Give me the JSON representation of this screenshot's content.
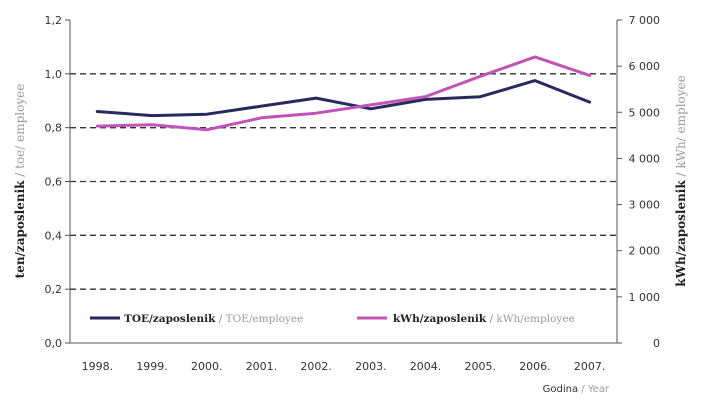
{
  "chart_data": {
    "type": "line",
    "categories": [
      "1998.",
      "1999.",
      "2000.",
      "2001.",
      "2002.",
      "2003.",
      "2004.",
      "2005.",
      "2006.",
      "2007."
    ],
    "series": [
      {
        "name": "TOE/zaposlenik / TOE/employee",
        "name_primary": "TOE/zaposlenik",
        "name_sep": " / ",
        "name_secondary": "TOE/employee",
        "axis": "left",
        "color": "#262a5c",
        "values": [
          0.86,
          0.845,
          0.85,
          0.88,
          0.91,
          0.87,
          0.905,
          0.915,
          0.975,
          0.895
        ]
      },
      {
        "name": "kWh/zaposlenik / kWh/employee",
        "name_primary": "kWh/zaposlenik",
        "name_sep": " / ",
        "name_secondary": "kWh/employee",
        "axis": "right",
        "color": "#c254b8",
        "values": [
          4700,
          4730,
          4620,
          4880,
          4980,
          5160,
          5340,
          5780,
          6200,
          5800
        ]
      }
    ],
    "ylim_left": [
      0,
      1.2
    ],
    "yticks_left": [
      "0,0",
      "0,2",
      "0,4",
      "0,6",
      "0,8",
      "1,0",
      "1,2"
    ],
    "ylim_right": [
      0,
      7000
    ],
    "yticks_right": [
      "0",
      "1 000",
      "2 000",
      "3 000",
      "4 000",
      "5 000",
      "6 000",
      "7 000"
    ],
    "ylabel_left": {
      "primary": "ten/zaposlenik",
      "sep": " / ",
      "secondary": "toe/ employee"
    },
    "ylabel_right": {
      "primary": "kWh/zaposlenik",
      "sep": " / ",
      "secondary": "kWh/ employee"
    },
    "xlabel": {
      "primary": "Godina",
      "sep": " / ",
      "secondary": "Year"
    },
    "grid": "horizontal dashed",
    "legend_placement": "bottom"
  }
}
